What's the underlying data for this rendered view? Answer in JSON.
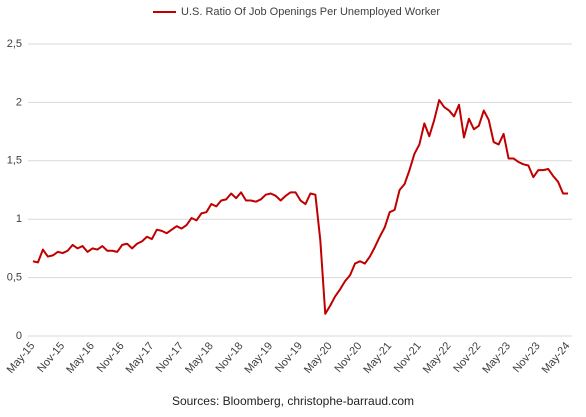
{
  "chart_data": {
    "type": "line",
    "categories": [
      "May-15",
      null,
      null,
      null,
      null,
      null,
      "Nov-15",
      null,
      null,
      null,
      null,
      null,
      "May-16",
      null,
      null,
      null,
      null,
      null,
      "Nov-16",
      null,
      null,
      null,
      null,
      null,
      "May-17",
      null,
      null,
      null,
      null,
      null,
      "Nov-17",
      null,
      null,
      null,
      null,
      null,
      "May-18",
      null,
      null,
      null,
      null,
      null,
      "Nov-18",
      null,
      null,
      null,
      null,
      null,
      "May-19",
      null,
      null,
      null,
      null,
      null,
      "Nov-19",
      null,
      null,
      null,
      null,
      null,
      "May-20",
      null,
      null,
      null,
      null,
      null,
      "Nov-20",
      null,
      null,
      null,
      null,
      null,
      "May-21",
      null,
      null,
      null,
      null,
      null,
      "Nov-21",
      null,
      null,
      null,
      null,
      null,
      "May-22",
      null,
      null,
      null,
      null,
      null,
      "Nov-22",
      null,
      null,
      null,
      null,
      null,
      "May-23",
      null,
      null,
      null,
      null,
      null,
      "Nov-23",
      null,
      null,
      null,
      null,
      null,
      "May-24"
    ],
    "series": [
      {
        "name": "U.S. Ratio Of Job Openings Per Unemployed Worker",
        "color": "#c00000",
        "values": [
          0.64,
          0.63,
          0.74,
          0.68,
          0.69,
          0.72,
          0.71,
          0.73,
          0.78,
          0.75,
          0.77,
          0.72,
          0.75,
          0.74,
          0.77,
          0.73,
          0.73,
          0.72,
          0.78,
          0.79,
          0.75,
          0.79,
          0.81,
          0.85,
          0.83,
          0.91,
          0.9,
          0.88,
          0.91,
          0.94,
          0.92,
          0.95,
          1.01,
          0.99,
          1.05,
          1.06,
          1.13,
          1.11,
          1.16,
          1.17,
          1.22,
          1.18,
          1.23,
          1.16,
          1.16,
          1.15,
          1.17,
          1.21,
          1.22,
          1.2,
          1.16,
          1.2,
          1.23,
          1.23,
          1.16,
          1.13,
          1.22,
          1.21,
          0.82,
          0.19,
          0.26,
          0.34,
          0.4,
          0.47,
          0.52,
          0.62,
          0.64,
          0.62,
          0.68,
          0.76,
          0.85,
          0.93,
          1.06,
          1.08,
          1.25,
          1.3,
          1.42,
          1.56,
          1.64,
          1.82,
          1.71,
          1.85,
          2.02,
          1.96,
          1.93,
          1.88,
          1.98,
          1.7,
          1.86,
          1.77,
          1.8,
          1.93,
          1.85,
          1.66,
          1.64,
          1.73,
          1.52,
          1.52,
          1.49,
          1.47,
          1.46,
          1.36,
          1.42,
          1.42,
          1.43,
          1.37,
          1.32,
          1.22,
          1.22
        ]
      }
    ],
    "ylim": [
      0,
      2.5
    ],
    "yticks": [
      0,
      {
        "value": 0.5,
        "label": "0,5"
      },
      1,
      {
        "value": 1.5,
        "label": "1,5"
      },
      2,
      {
        "value": 2.5,
        "label": "2,5"
      }
    ],
    "grid": true,
    "source": "Sources: Bloomberg, christophe-barraud.com"
  }
}
